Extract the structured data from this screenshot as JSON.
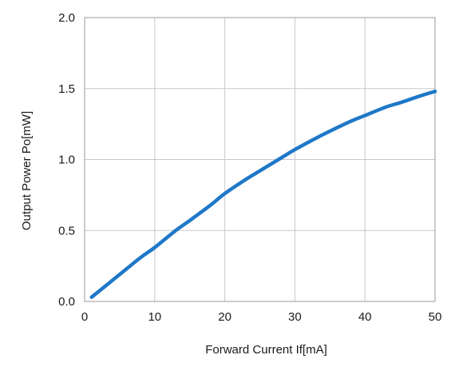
{
  "chart_data": {
    "type": "line",
    "xlabel": "Forward Current If[mA]",
    "ylabel": "Output Power Po[mW]",
    "xlim": [
      0,
      50
    ],
    "ylim": [
      0,
      2.0
    ],
    "xticks": [
      0,
      10,
      20,
      30,
      40,
      50
    ],
    "xtick_labels": [
      "0",
      "10",
      "20",
      "30",
      "40",
      "50"
    ],
    "yticks": [
      0,
      0.5,
      1.0,
      1.5,
      2.0
    ],
    "ytick_labels": [
      "0.0",
      "0.5",
      "1.0",
      "1.5",
      "2.0"
    ],
    "grid": true,
    "legend": "none",
    "colors": {
      "line": "#1f78c8",
      "grid": "#c8c8c8",
      "axis": "#9a9a9a"
    },
    "series": [
      {
        "x": [
          1,
          3,
          5,
          8,
          10,
          13,
          15,
          18,
          20,
          23,
          25,
          28,
          30,
          33,
          35,
          38,
          40,
          43,
          45,
          48,
          50
        ],
        "y": [
          0.03,
          0.11,
          0.19,
          0.31,
          0.38,
          0.5,
          0.57,
          0.68,
          0.76,
          0.86,
          0.92,
          1.01,
          1.07,
          1.15,
          1.2,
          1.27,
          1.31,
          1.37,
          1.4,
          1.45,
          1.48
        ]
      }
    ]
  }
}
